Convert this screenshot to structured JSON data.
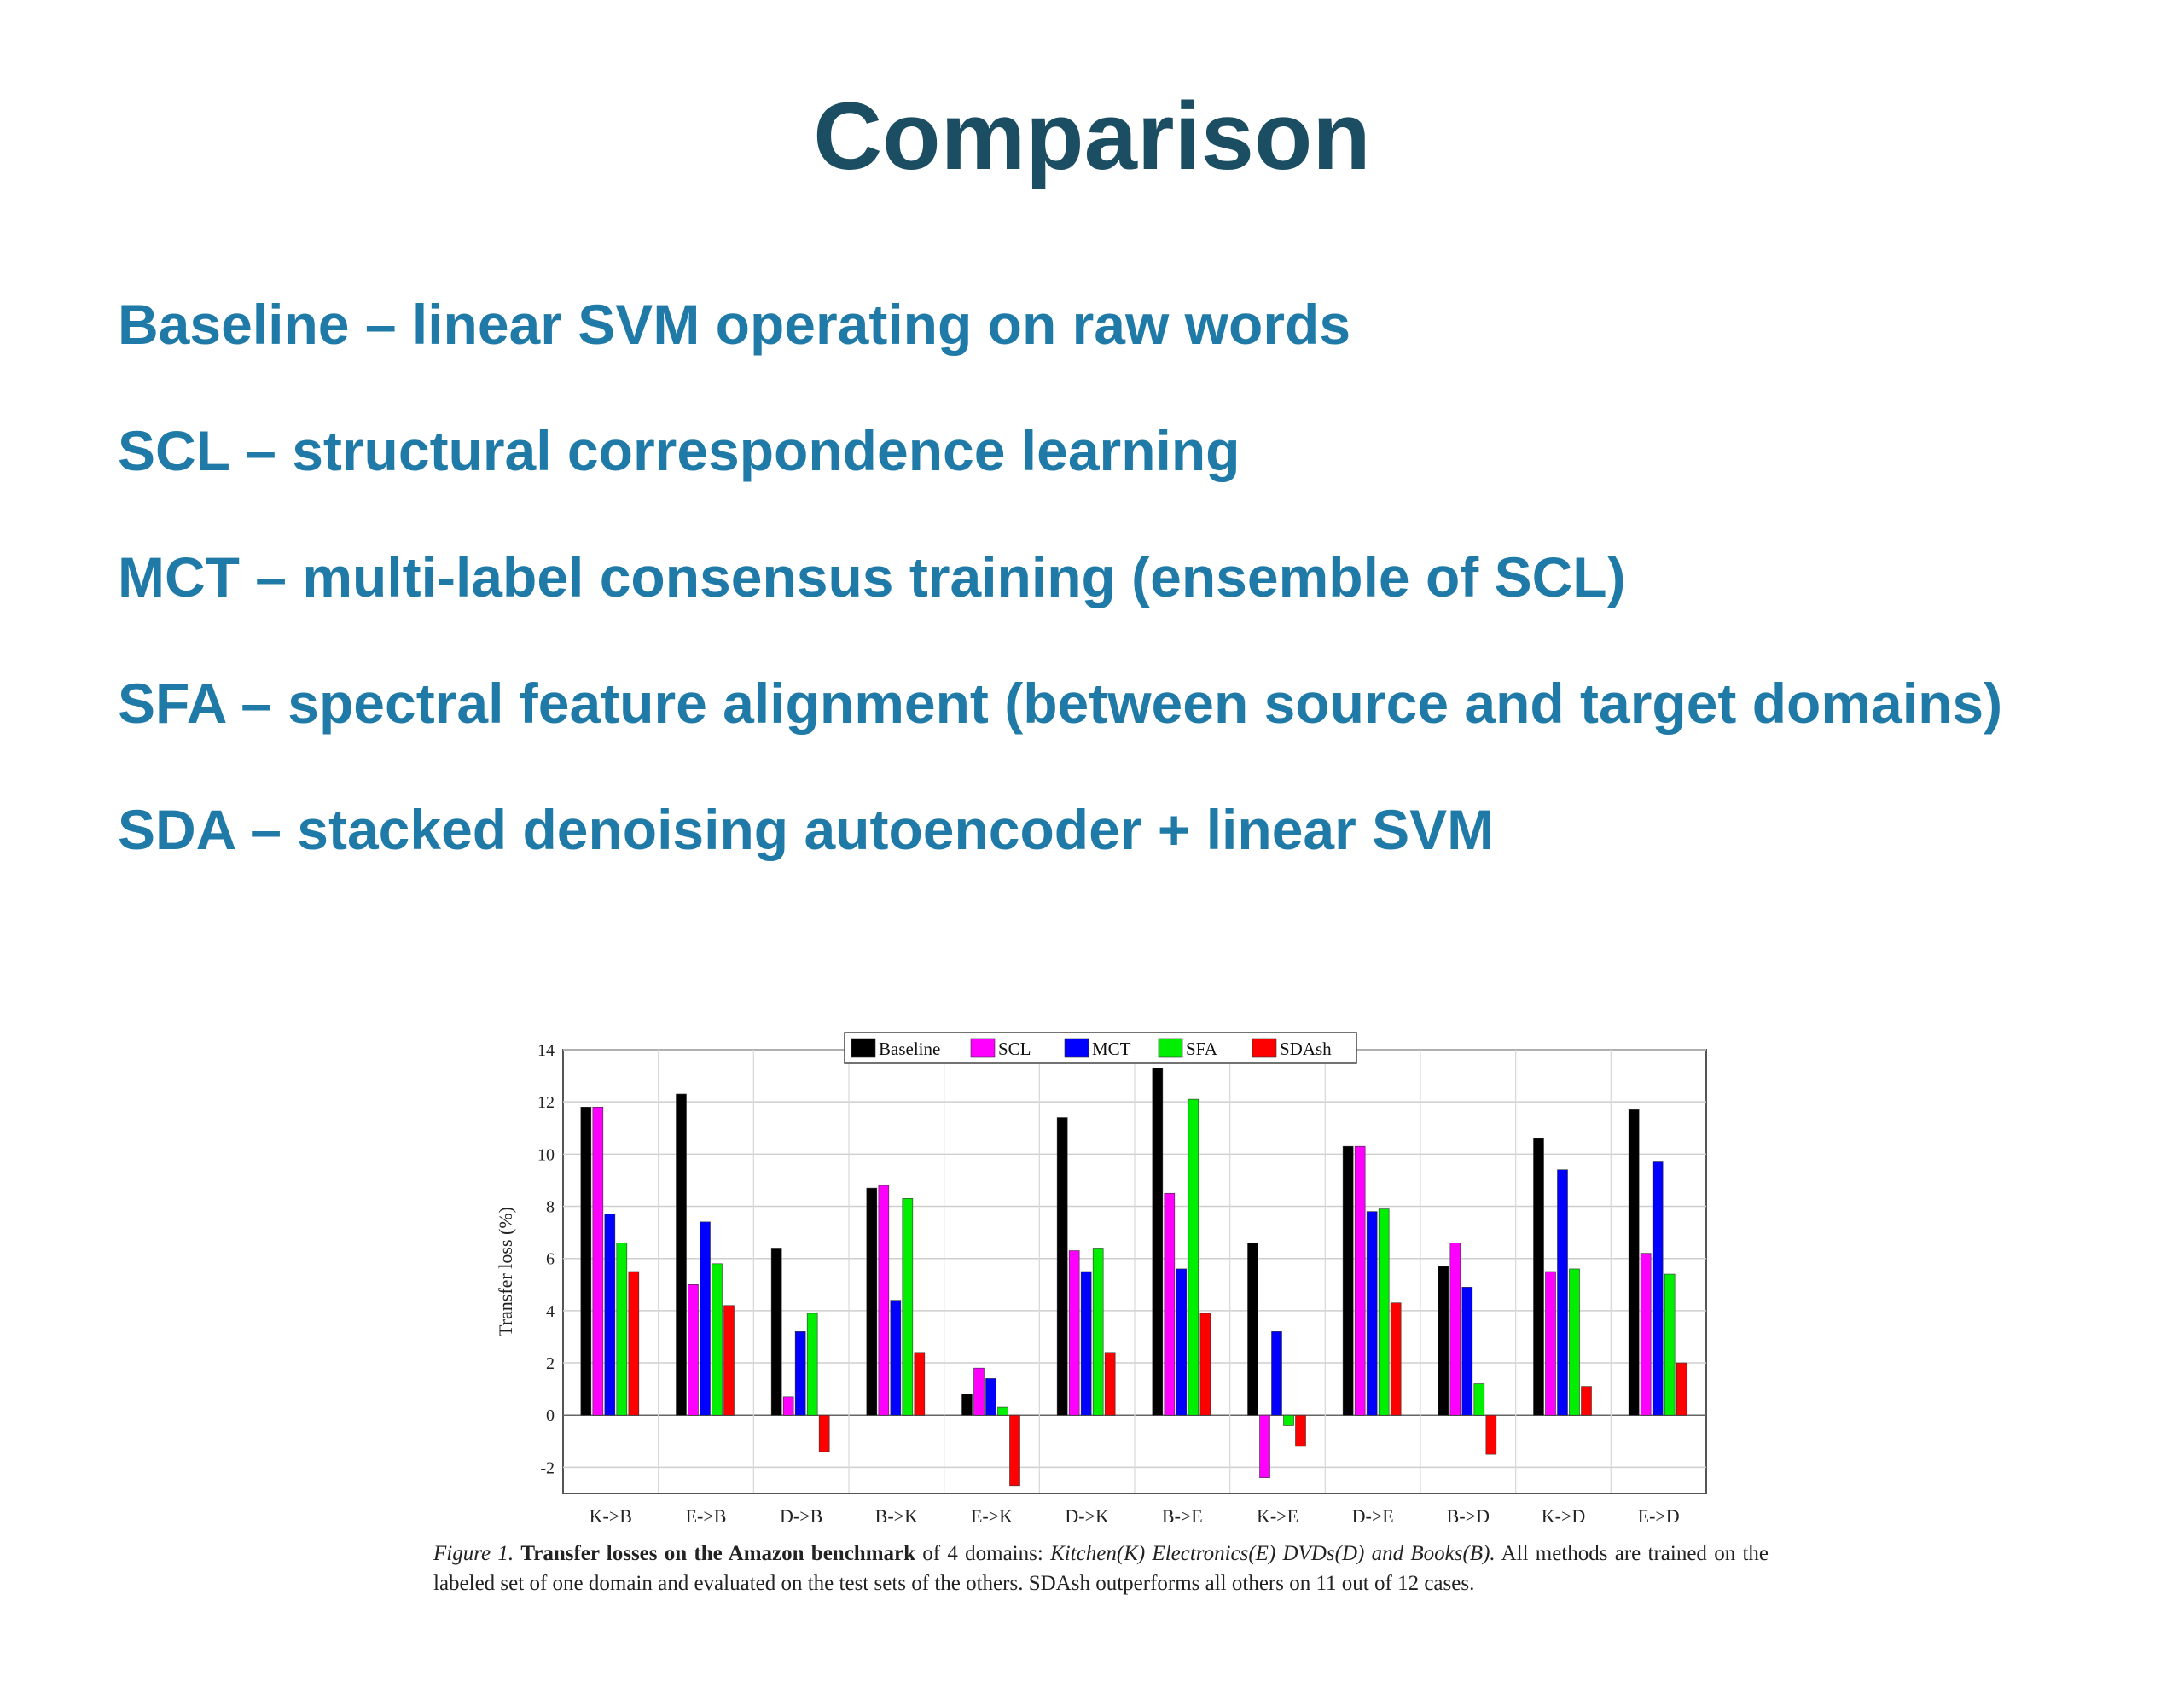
{
  "slide": {
    "title": "Comparison",
    "bullets": [
      "Baseline – linear SVM operating on raw words",
      "SCL – structural correspondence learning",
      "MCT – multi-label consensus training (ensemble of SCL)",
      "SFA – spectral feature alignment (between source and target domains)",
      "SDA – stacked denoising autoencoder + linear SVM"
    ]
  },
  "caption": {
    "figure_label": "Figure 1.",
    "bold_text": "Transfer losses on the Amazon benchmark",
    "text_before_domains": "of 4 domains:",
    "domains": [
      "Kitchen(K)",
      "Electronics(E)",
      "DVDs(D) and",
      "Books(B)."
    ],
    "rest": "All methods are trained on the labeled set of one domain and evaluated on the test sets of the others. SDAsh outperforms all others on 11 out of 12 cases."
  },
  "colors": {
    "title": "#1c4e63",
    "bullets": "#1f7aa8"
  },
  "chart_data": {
    "type": "bar",
    "ylabel": "Transfer loss (%)",
    "xlabel": "",
    "ylim": [
      -3,
      14
    ],
    "yticks": [
      -2,
      0,
      2,
      4,
      6,
      8,
      10,
      12,
      14
    ],
    "grid": true,
    "legend_position": "top-center",
    "categories": [
      "K->B",
      "E->B",
      "D->B",
      "B->K",
      "E->K",
      "D->K",
      "B->E",
      "K->E",
      "D->E",
      "B->D",
      "K->D",
      "E->D"
    ],
    "series": [
      {
        "name": "Baseline",
        "color": "#000000",
        "values": [
          11.8,
          12.3,
          6.4,
          8.7,
          0.8,
          11.4,
          13.3,
          6.6,
          10.3,
          5.7,
          10.6,
          11.7
        ]
      },
      {
        "name": "SCL",
        "color": "#ff00ff",
        "values": [
          11.8,
          5.0,
          0.7,
          8.8,
          1.8,
          6.3,
          8.5,
          -2.4,
          10.3,
          6.6,
          5.5,
          6.2
        ]
      },
      {
        "name": "MCT",
        "color": "#0000ff",
        "values": [
          7.7,
          7.4,
          3.2,
          4.4,
          1.4,
          5.5,
          5.6,
          3.2,
          7.8,
          4.9,
          9.4,
          9.7
        ]
      },
      {
        "name": "SFA",
        "color": "#00ee00",
        "values": [
          6.6,
          5.8,
          3.9,
          8.3,
          0.3,
          6.4,
          12.1,
          -0.4,
          7.9,
          1.2,
          5.6,
          5.4
        ]
      },
      {
        "name": "SDAsh",
        "color": "#ff0000",
        "values": [
          5.5,
          4.2,
          -1.4,
          2.4,
          -2.7,
          2.4,
          3.9,
          -1.2,
          4.3,
          -1.5,
          1.1,
          2.0
        ]
      }
    ]
  }
}
